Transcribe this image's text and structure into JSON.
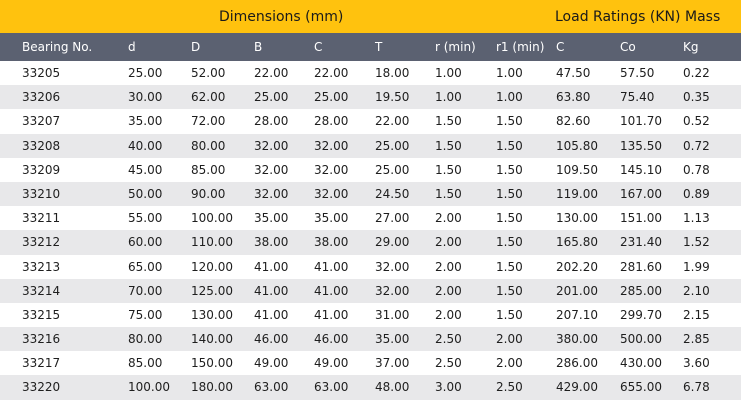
{
  "group_headers": {
    "dimensions": "Dimensions (mm)",
    "load_ratings": "Load Ratings (KN)",
    "mass": "Mass"
  },
  "columns": [
    "Bearing No.",
    "d",
    "D",
    "B",
    "C",
    "T",
    "r (min)",
    "r1 (min)",
    "C",
    "Co",
    "Kg"
  ],
  "rows": [
    [
      "33205",
      "25.00",
      "52.00",
      "22.00",
      "22.00",
      "18.00",
      "1.00",
      "1.00",
      "47.50",
      "57.50",
      "0.22"
    ],
    [
      "33206",
      "30.00",
      "62.00",
      "25.00",
      "25.00",
      "19.50",
      "1.00",
      "1.00",
      "63.80",
      "75.40",
      "0.35"
    ],
    [
      "33207",
      "35.00",
      "72.00",
      "28.00",
      "28.00",
      "22.00",
      "1.50",
      "1.50",
      "82.60",
      "101.70",
      "0.52"
    ],
    [
      "33208",
      "40.00",
      "80.00",
      "32.00",
      "32.00",
      "25.00",
      "1.50",
      "1.50",
      "105.80",
      "135.50",
      "0.72"
    ],
    [
      "33209",
      "45.00",
      "85.00",
      "32.00",
      "32.00",
      "25.00",
      "1.50",
      "1.50",
      "109.50",
      "145.10",
      "0.78"
    ],
    [
      "33210",
      "50.00",
      "90.00",
      "32.00",
      "32.00",
      "24.50",
      "1.50",
      "1.50",
      "119.00",
      "167.00",
      "0.89"
    ],
    [
      "33211",
      "55.00",
      "100.00",
      "35.00",
      "35.00",
      "27.00",
      "2.00",
      "1.50",
      "130.00",
      "151.00",
      "1.13"
    ],
    [
      "33212",
      "60.00",
      "110.00",
      "38.00",
      "38.00",
      "29.00",
      "2.00",
      "1.50",
      "165.80",
      "231.40",
      "1.52"
    ],
    [
      "33213",
      "65.00",
      "120.00",
      "41.00",
      "41.00",
      "32.00",
      "2.00",
      "1.50",
      "202.20",
      "281.60",
      "1.99"
    ],
    [
      "33214",
      "70.00",
      "125.00",
      "41.00",
      "41.00",
      "32.00",
      "2.00",
      "1.50",
      "201.00",
      "285.00",
      "2.10"
    ],
    [
      "33215",
      "75.00",
      "130.00",
      "41.00",
      "41.00",
      "31.00",
      "2.00",
      "1.50",
      "207.10",
      "299.70",
      "2.15"
    ],
    [
      "33216",
      "80.00",
      "140.00",
      "46.00",
      "46.00",
      "35.00",
      "2.50",
      "2.00",
      "380.00",
      "500.00",
      "2.85"
    ],
    [
      "33217",
      "85.00",
      "150.00",
      "49.00",
      "49.00",
      "37.00",
      "2.50",
      "2.00",
      "286.00",
      "430.00",
      "3.60"
    ],
    [
      "33220",
      "100.00",
      "180.00",
      "63.00",
      "63.00",
      "48.00",
      "3.00",
      "2.50",
      "429.00",
      "655.00",
      "6.78"
    ]
  ],
  "colors": {
    "group_bar": "#ffc20e",
    "header_row": "#5b6171",
    "alt_row": "#e8e8ea"
  }
}
